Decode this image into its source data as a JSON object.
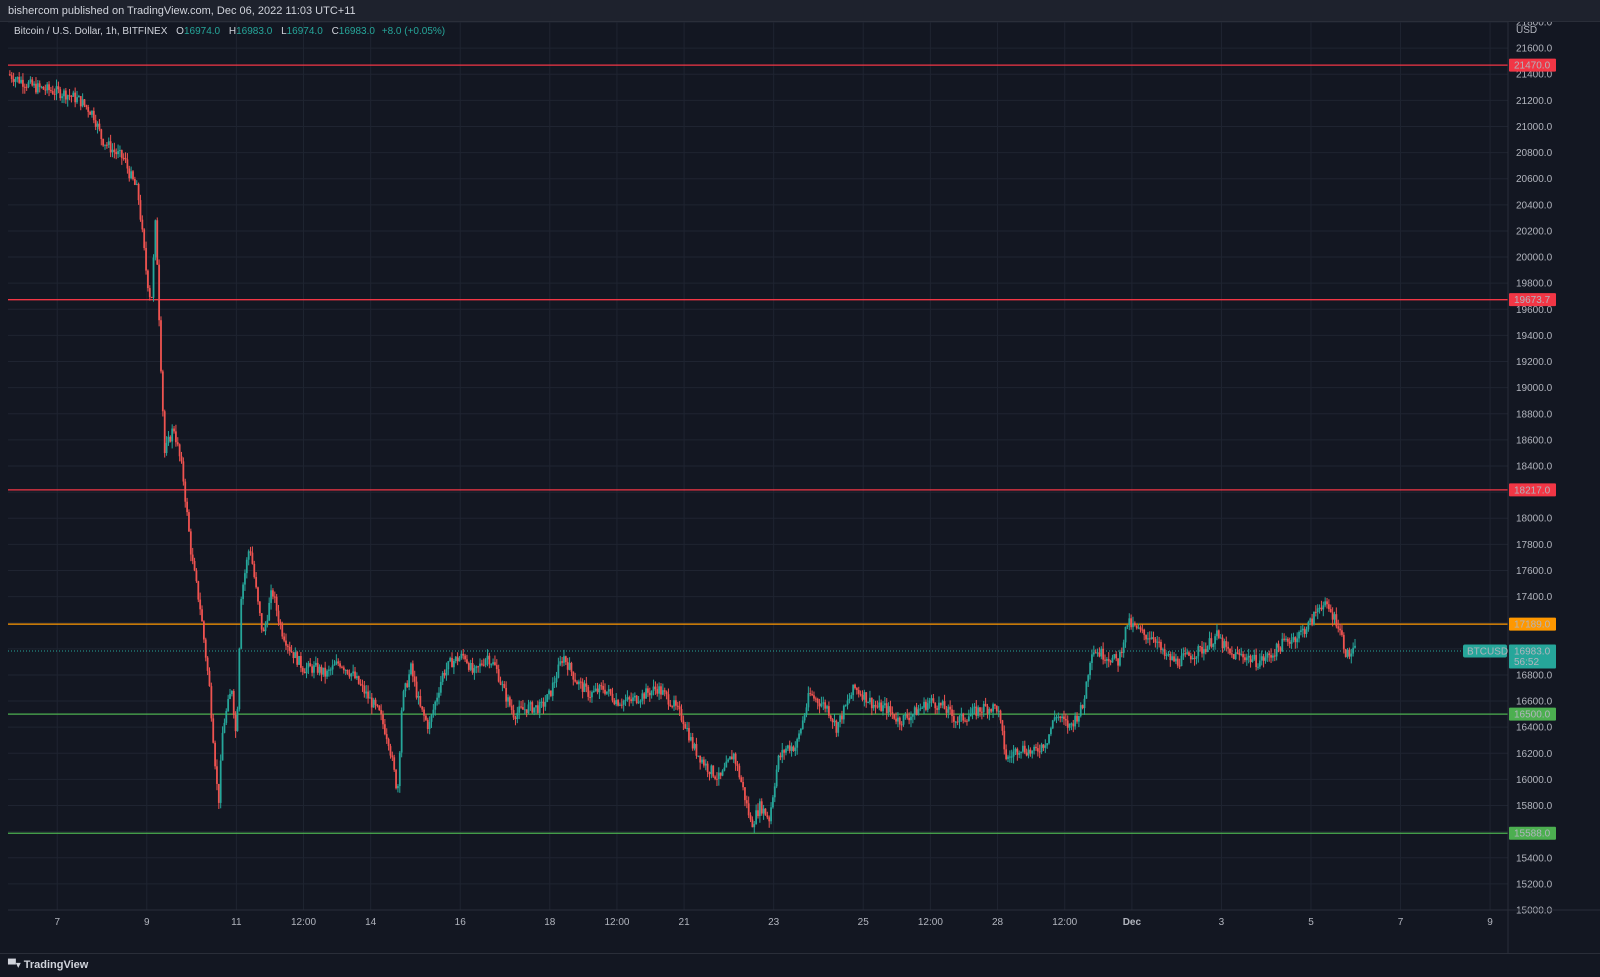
{
  "header": {
    "published_text": "bishercom published on TradingView.com, Dec 06, 2022 11:03 UTC+11"
  },
  "legend": {
    "symbol": "Bitcoin / U.S. Dollar, 1h, BITFINEX",
    "open_label": "O",
    "open_value": "16974.0",
    "high_label": "H",
    "high_value": "16983.0",
    "low_label": "L",
    "low_value": "16974.0",
    "close_label": "C",
    "close_value": "16983.0",
    "change": "+8.0 (+0.05%)"
  },
  "footer": {
    "logo_text": "TradingView",
    "logo_icon": "tradingview-logo-icon"
  },
  "colors": {
    "background": "#131722",
    "grid": "#1f2431",
    "up": "#26a69a",
    "down": "#ef5350",
    "resistance": "#f23645",
    "pivot": "#ff9800",
    "support": "#4caf50",
    "current": "#26a69a"
  },
  "chart_data": {
    "type": "candlestick",
    "currency": "USD",
    "ylim": [
      15000,
      21800
    ],
    "y_ticks": [
      15000,
      15200,
      15400,
      15600,
      15800,
      16000,
      16200,
      16400,
      16600,
      16800,
      17000,
      17200,
      17400,
      17600,
      17800,
      18000,
      18200,
      18400,
      18600,
      18800,
      19000,
      19200,
      19400,
      19600,
      19800,
      20000,
      20200,
      20400,
      20600,
      20800,
      21000,
      21200,
      21400,
      21600,
      21800
    ],
    "x_ticks": [
      {
        "t": 7,
        "label": "7"
      },
      {
        "t": 9,
        "label": "9"
      },
      {
        "t": 11,
        "label": "11"
      },
      {
        "t": 12.5,
        "label": "12:00"
      },
      {
        "t": 14,
        "label": "14"
      },
      {
        "t": 16,
        "label": "16"
      },
      {
        "t": 18,
        "label": "18"
      },
      {
        "t": 19.5,
        "label": "12:00"
      },
      {
        "t": 21,
        "label": "21"
      },
      {
        "t": 23,
        "label": "23"
      },
      {
        "t": 25,
        "label": "25"
      },
      {
        "t": 26.5,
        "label": "12:00"
      },
      {
        "t": 28,
        "label": "28"
      },
      {
        "t": 29.5,
        "label": "12:00"
      },
      {
        "t": 31,
        "label": "Dec"
      },
      {
        "t": 33,
        "label": "3"
      },
      {
        "t": 35,
        "label": "5"
      },
      {
        "t": 37,
        "label": "7"
      },
      {
        "t": 39,
        "label": "9"
      }
    ],
    "x_domain": [
      5.9,
      39.4
    ],
    "grid": true,
    "horizontal_lines": [
      {
        "value": 21470.0,
        "label": "21470.0",
        "role": "resistance"
      },
      {
        "value": 19673.7,
        "label": "19673.7",
        "role": "resistance"
      },
      {
        "value": 18217.0,
        "label": "18217.0",
        "role": "resistance"
      },
      {
        "value": 17189.0,
        "label": "17189.0",
        "role": "pivot"
      },
      {
        "value": 16500.0,
        "label": "16500.0",
        "role": "support"
      },
      {
        "value": 15588.0,
        "label": "15588.0",
        "role": "support"
      }
    ],
    "last_price": {
      "symbol": "BTCUSD",
      "value": 16983.0,
      "label": "16983.0",
      "countdown": "56:52"
    },
    "price_path": [
      [
        5.9,
        21400
      ],
      [
        6.2,
        21350
      ],
      [
        6.5,
        21300
      ],
      [
        6.8,
        21280
      ],
      [
        7.2,
        21250
      ],
      [
        7.5,
        21200
      ],
      [
        7.8,
        21100
      ],
      [
        8.0,
        20900
      ],
      [
        8.3,
        20800
      ],
      [
        8.5,
        20750
      ],
      [
        8.6,
        20650
      ],
      [
        8.8,
        20500
      ],
      [
        9.0,
        19850
      ],
      [
        9.1,
        19650
      ],
      [
        9.2,
        20300
      ],
      [
        9.3,
        19300
      ],
      [
        9.4,
        18500
      ],
      [
        9.6,
        18700
      ],
      [
        9.8,
        18350
      ],
      [
        10.0,
        17700
      ],
      [
        10.2,
        17300
      ],
      [
        10.4,
        16700
      ],
      [
        10.6,
        15800
      ],
      [
        10.7,
        16400
      ],
      [
        10.9,
        16700
      ],
      [
        11.0,
        16300
      ],
      [
        11.1,
        17400
      ],
      [
        11.3,
        17800
      ],
      [
        11.5,
        17300
      ],
      [
        11.6,
        17100
      ],
      [
        11.8,
        17450
      ],
      [
        12.0,
        17150
      ],
      [
        12.2,
        17000
      ],
      [
        12.5,
        16850
      ],
      [
        12.8,
        16850
      ],
      [
        13.0,
        16800
      ],
      [
        13.3,
        16900
      ],
      [
        13.6,
        16800
      ],
      [
        13.9,
        16650
      ],
      [
        14.2,
        16500
      ],
      [
        14.4,
        16300
      ],
      [
        14.6,
        15900
      ],
      [
        14.7,
        16600
      ],
      [
        14.9,
        16850
      ],
      [
        15.1,
        16550
      ],
      [
        15.3,
        16400
      ],
      [
        15.6,
        16800
      ],
      [
        15.8,
        16900
      ],
      [
        16.1,
        16950
      ],
      [
        16.3,
        16800
      ],
      [
        16.6,
        16950
      ],
      [
        16.8,
        16850
      ],
      [
        17.0,
        16650
      ],
      [
        17.2,
        16500
      ],
      [
        17.5,
        16550
      ],
      [
        17.8,
        16550
      ],
      [
        18.0,
        16650
      ],
      [
        18.3,
        16950
      ],
      [
        18.6,
        16750
      ],
      [
        18.9,
        16650
      ],
      [
        19.2,
        16700
      ],
      [
        19.5,
        16600
      ],
      [
        19.8,
        16600
      ],
      [
        20.1,
        16650
      ],
      [
        20.4,
        16700
      ],
      [
        20.7,
        16600
      ],
      [
        21.0,
        16450
      ],
      [
        21.2,
        16250
      ],
      [
        21.5,
        16100
      ],
      [
        21.8,
        16000
      ],
      [
        22.1,
        16200
      ],
      [
        22.3,
        15950
      ],
      [
        22.5,
        15650
      ],
      [
        22.7,
        15800
      ],
      [
        22.9,
        15700
      ],
      [
        23.1,
        16150
      ],
      [
        23.3,
        16250
      ],
      [
        23.5,
        16250
      ],
      [
        23.8,
        16650
      ],
      [
        24.0,
        16600
      ],
      [
        24.2,
        16550
      ],
      [
        24.4,
        16400
      ],
      [
        24.6,
        16550
      ],
      [
        24.8,
        16700
      ],
      [
        25.0,
        16650
      ],
      [
        25.3,
        16550
      ],
      [
        25.5,
        16550
      ],
      [
        25.8,
        16450
      ],
      [
        26.1,
        16500
      ],
      [
        26.5,
        16600
      ],
      [
        26.8,
        16550
      ],
      [
        27.1,
        16450
      ],
      [
        27.4,
        16500
      ],
      [
        27.7,
        16550
      ],
      [
        28.0,
        16550
      ],
      [
        28.2,
        16150
      ],
      [
        28.5,
        16250
      ],
      [
        28.8,
        16200
      ],
      [
        29.1,
        16300
      ],
      [
        29.3,
        16500
      ],
      [
        29.6,
        16400
      ],
      [
        29.9,
        16550
      ],
      [
        30.1,
        17000
      ],
      [
        30.4,
        16950
      ],
      [
        30.7,
        16900
      ],
      [
        30.9,
        17200
      ],
      [
        31.1,
        17150
      ],
      [
        31.3,
        17100
      ],
      [
        31.5,
        17100
      ],
      [
        31.7,
        16950
      ],
      [
        32.0,
        16900
      ],
      [
        32.3,
        16950
      ],
      [
        32.6,
        17000
      ],
      [
        32.9,
        17100
      ],
      [
        33.2,
        16950
      ],
      [
        33.5,
        16950
      ],
      [
        33.8,
        16900
      ],
      [
        34.1,
        16950
      ],
      [
        34.4,
        17050
      ],
      [
        34.7,
        17100
      ],
      [
        35.0,
        17200
      ],
      [
        35.2,
        17350
      ],
      [
        35.4,
        17300
      ],
      [
        35.6,
        17200
      ],
      [
        35.8,
        16950
      ],
      [
        36.0,
        16983
      ]
    ]
  }
}
